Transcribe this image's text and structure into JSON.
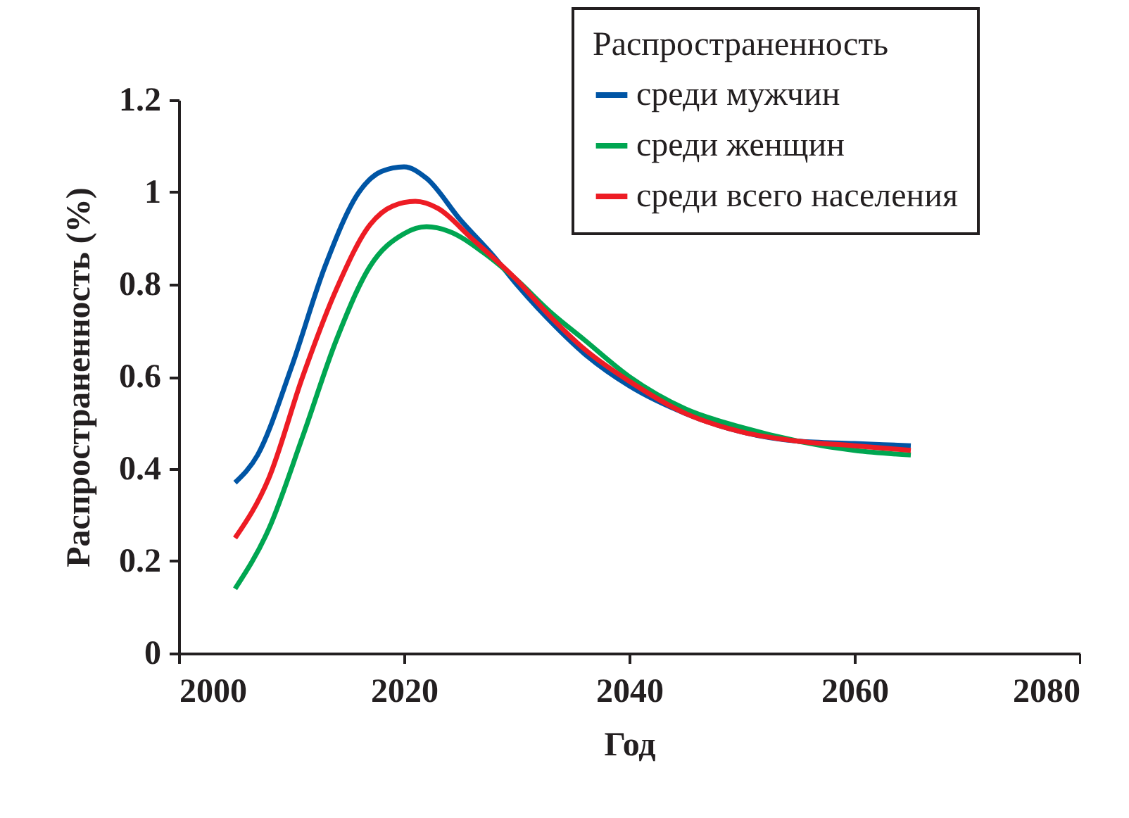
{
  "chart_data": {
    "type": "line",
    "xlabel": "Год",
    "ylabel": "Распространенность  (%)",
    "legend_title": "Распространенность",
    "legend": "top right",
    "grid": false,
    "marker": "none",
    "line_style": "solid",
    "xlim": [
      2000,
      2080
    ],
    "xticks": [
      2000,
      2020,
      2040,
      2060,
      2080
    ],
    "ylim": [
      0,
      1.2
    ],
    "yticks": [
      0,
      0.2,
      0.4,
      0.6,
      0.8,
      1,
      1.2
    ],
    "series": [
      {
        "name": "среди мужчин",
        "color": "#0055a5",
        "x": [
          2005,
          2007,
          2010,
          2013,
          2016,
          2018,
          2020,
          2022,
          2025,
          2028,
          2030,
          2033,
          2036,
          2040,
          2045,
          2050,
          2055,
          2060,
          2065
        ],
        "values": [
          0.37,
          0.43,
          0.62,
          0.84,
          1.0,
          1.045,
          1.055,
          1.03,
          0.94,
          0.86,
          0.8,
          0.72,
          0.65,
          0.58,
          0.52,
          0.48,
          0.46,
          0.455,
          0.45
        ]
      },
      {
        "name": "среди женщин",
        "color": "#00a651",
        "x": [
          2005,
          2008,
          2011,
          2014,
          2017,
          2020,
          2022,
          2024,
          2027,
          2030,
          2033,
          2036,
          2040,
          2045,
          2050,
          2055,
          2060,
          2065
        ],
        "values": [
          0.14,
          0.27,
          0.47,
          0.68,
          0.84,
          0.91,
          0.925,
          0.915,
          0.87,
          0.81,
          0.74,
          0.68,
          0.6,
          0.53,
          0.49,
          0.46,
          0.44,
          0.43
        ]
      },
      {
        "name": "среди всего населения",
        "color": "#ed1c24",
        "x": [
          2005,
          2008,
          2011,
          2014,
          2017,
          2019,
          2021,
          2023,
          2026,
          2030,
          2033,
          2036,
          2040,
          2045,
          2050,
          2055,
          2060,
          2065
        ],
        "values": [
          0.25,
          0.38,
          0.6,
          0.79,
          0.93,
          0.97,
          0.98,
          0.965,
          0.9,
          0.81,
          0.73,
          0.66,
          0.59,
          0.52,
          0.48,
          0.46,
          0.45,
          0.44
        ]
      }
    ]
  }
}
